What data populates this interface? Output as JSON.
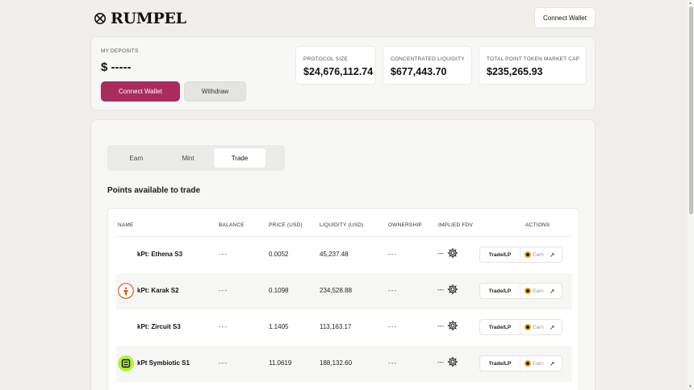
{
  "header": {
    "brand": "RUMPEL",
    "connect_label": "Connect Wallet"
  },
  "deposits": {
    "label": "MY DEPOSITS",
    "value": "$ -----",
    "connect_label": "Connect Wallet",
    "withdraw_label": "Withdraw"
  },
  "stats": [
    {
      "label": "PROTOCOL SIZE",
      "value": "$24,676,112.74"
    },
    {
      "label": "CONCENTRATED LIQUIDITY",
      "value": "$677,443.70"
    },
    {
      "label": "TOTAL POINT TOKEN MARKET CAP",
      "value": "$235,265.93"
    }
  ],
  "tabs": [
    {
      "label": "Earn"
    },
    {
      "label": "Mint"
    },
    {
      "label": "Trade"
    }
  ],
  "active_tab": "Trade",
  "section_title": "Points available to trade",
  "table": {
    "headers": {
      "name": "NAME",
      "balance": "BALANCE",
      "price": "PRICE (USD)",
      "liquidity": "LIQUIDITY (USD)",
      "ownership": "OWNERSHIP",
      "fdv": "IMPLIED FDV",
      "actions": "ACTIONS"
    },
    "rows": [
      {
        "name": "kPt: Ethena S3",
        "balance": "---",
        "price": "0.0052",
        "liquidity": "45,237.48",
        "ownership": "---",
        "fdv": "---",
        "trade": "Trade/LP",
        "earn": "Earn",
        "icon": "none"
      },
      {
        "name": "kPt: Karak S2",
        "balance": "---",
        "price": "0.1098",
        "liquidity": "234,528.88",
        "ownership": "---",
        "fdv": "---",
        "trade": "Trade/LP",
        "earn": "Earn",
        "icon": "karak-icon"
      },
      {
        "name": "kPt: Zircuit S3",
        "balance": "---",
        "price": "1.1405",
        "liquidity": "113,163.17",
        "ownership": "---",
        "fdv": "---",
        "trade": "Trade/LP",
        "earn": "Earn",
        "icon": "none"
      },
      {
        "name": "kPt Symbiotic S1",
        "balance": "---",
        "price": "11.0619",
        "liquidity": "188,132.60",
        "ownership": "---",
        "fdv": "---",
        "trade": "Trade/LP",
        "earn": "Earn",
        "icon": "symbiotic-icon"
      }
    ]
  },
  "colors": {
    "accent": "#a82c5c",
    "karak": "#e2561f",
    "symbiotic": "#b7f03a",
    "earn": "#e5a823"
  }
}
